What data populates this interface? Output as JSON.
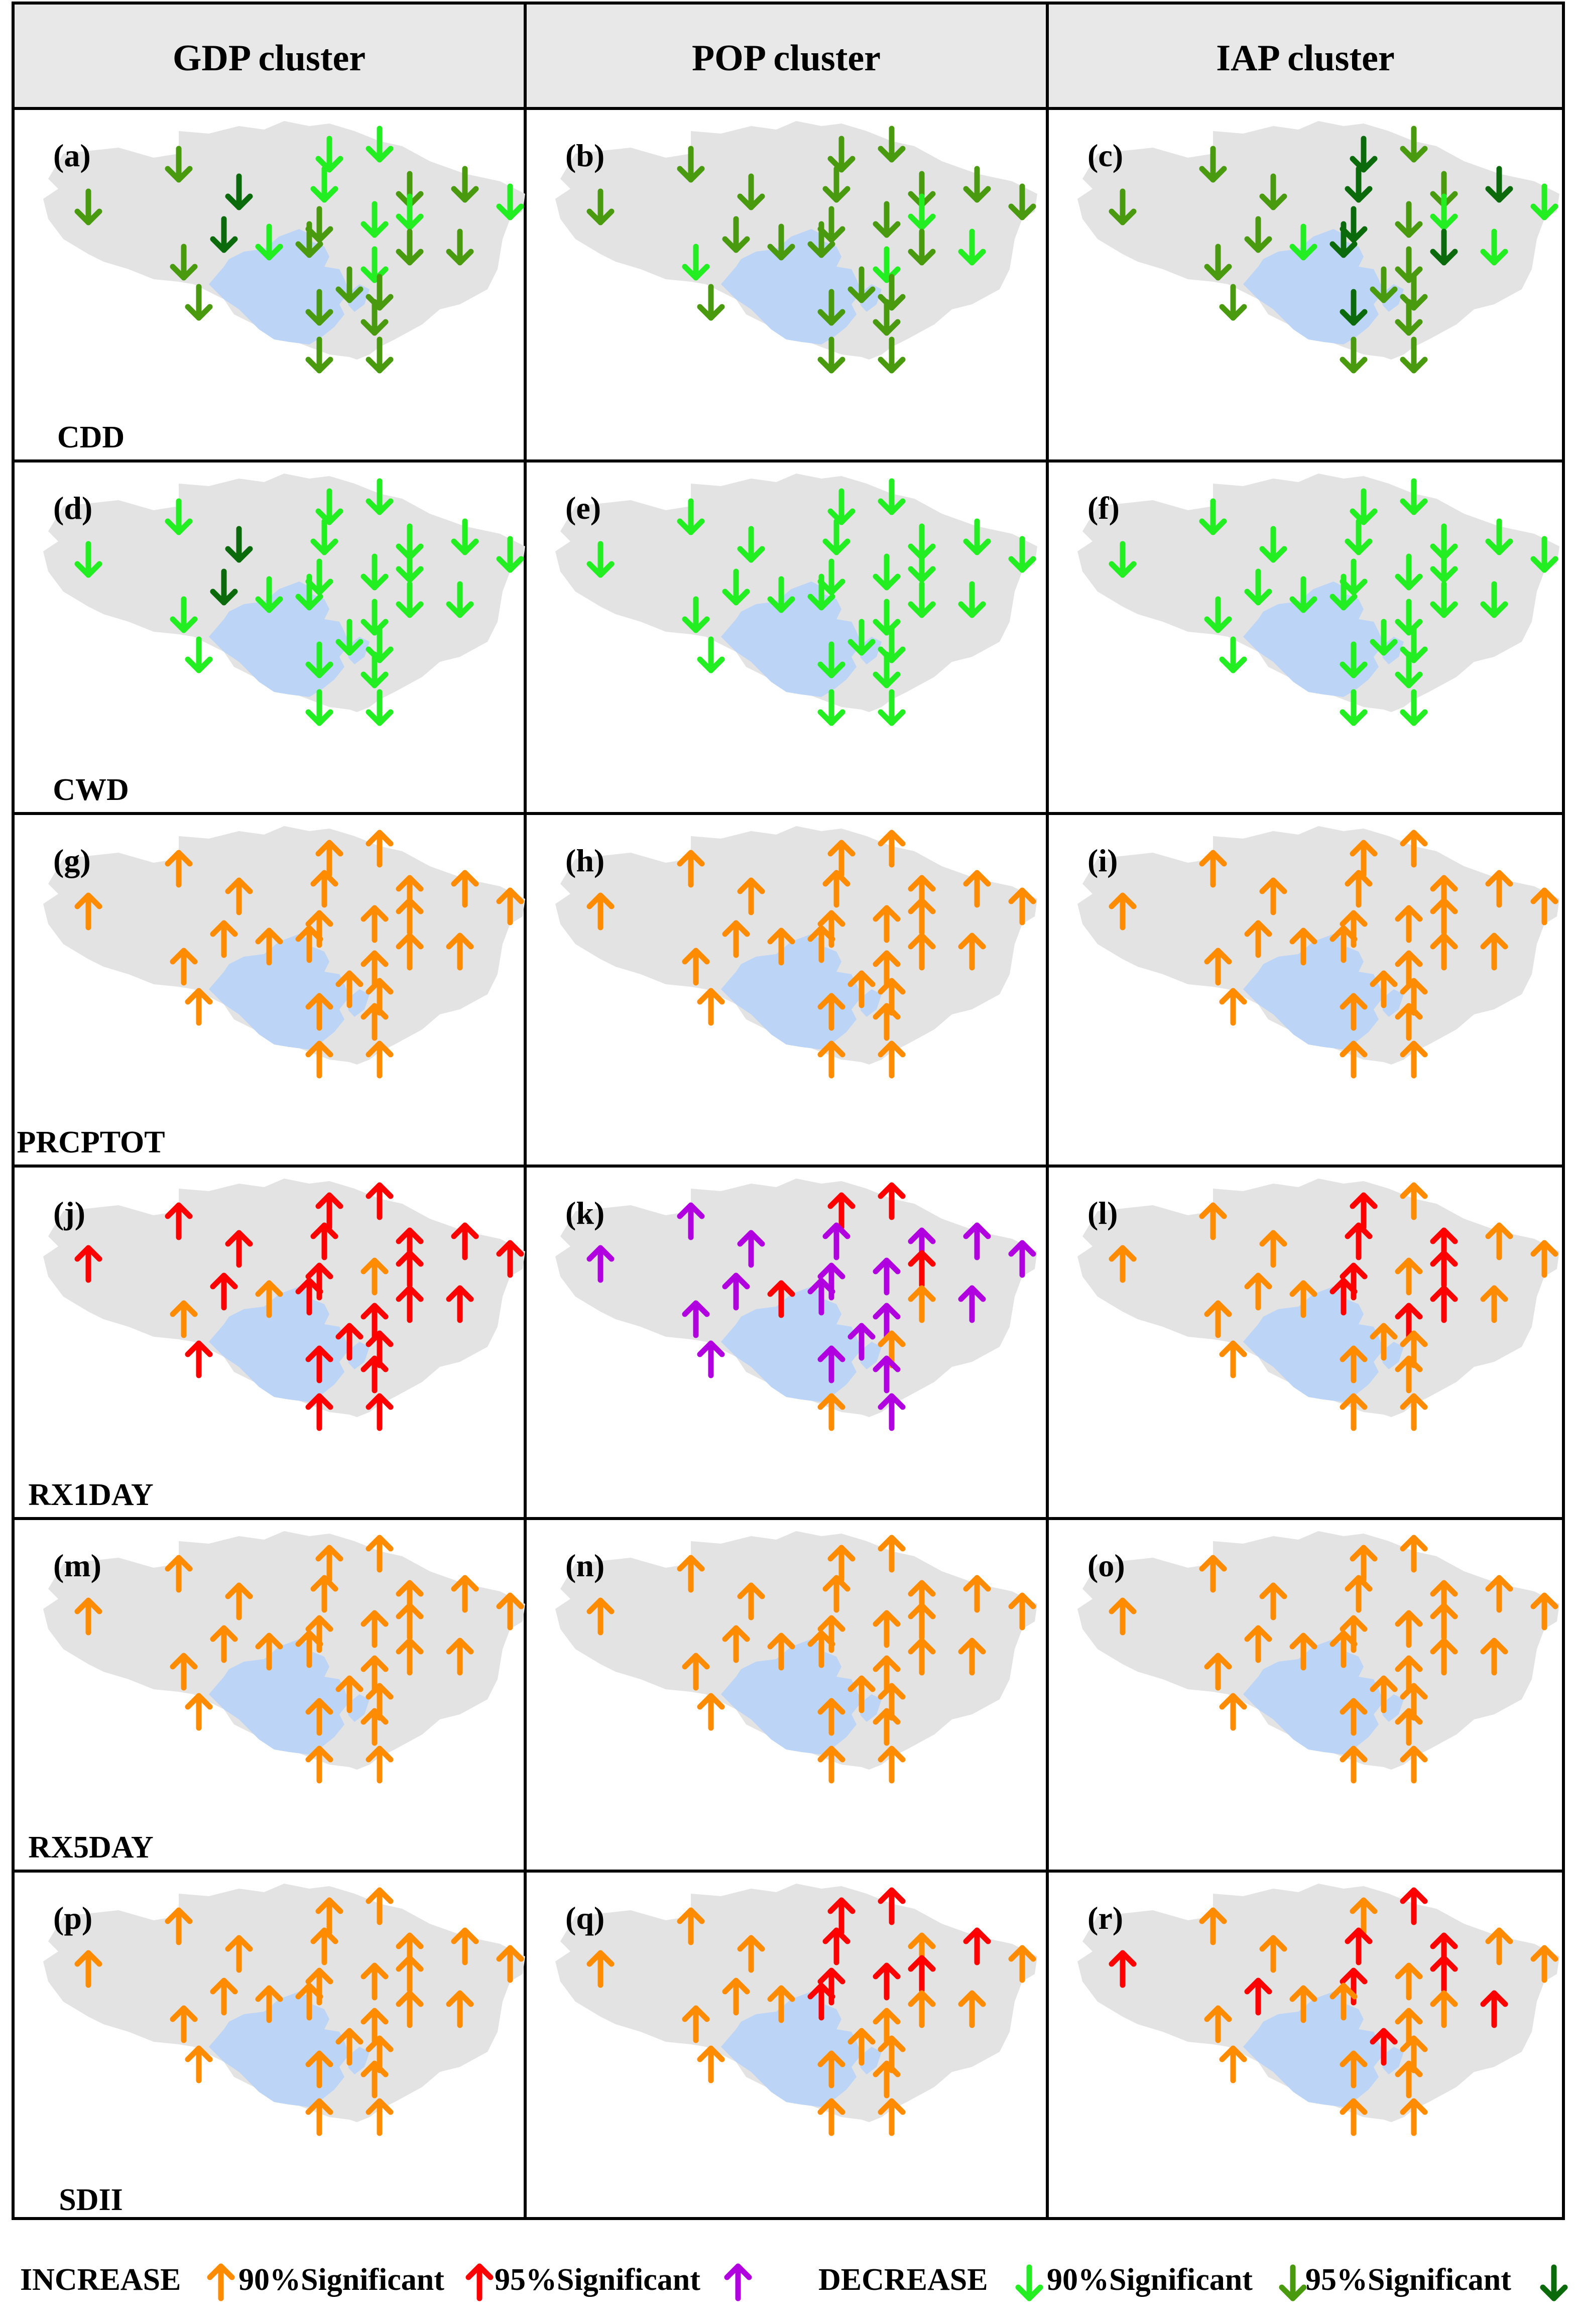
{
  "headers": [
    "GDP cluster",
    "POP cluster",
    "IAP cluster"
  ],
  "rows": [
    {
      "index": "CDD",
      "panels": [
        "(a)",
        "(b)",
        "(c)"
      ],
      "kinds": [
        "dec-mix-a",
        "dec-mix-b",
        "dec-mix-c"
      ]
    },
    {
      "index": "CWD",
      "panels": [
        "(d)",
        "(e)",
        "(f)"
      ],
      "kinds": [
        "dec-d",
        "dec",
        "dec"
      ]
    },
    {
      "index": "PRCPTOT",
      "panels": [
        "(g)",
        "(h)",
        "(i)"
      ],
      "kinds": [
        "inc",
        "inc",
        "inc"
      ]
    },
    {
      "index": "RX1DAY",
      "panels": [
        "(j)",
        "(k)",
        "(l)"
      ],
      "kinds": [
        "inc-j",
        "inc-k",
        "inc-l"
      ]
    },
    {
      "index": "RX5DAY",
      "panels": [
        "(m)",
        "(n)",
        "(o)"
      ],
      "kinds": [
        "inc",
        "inc",
        "inc"
      ]
    },
    {
      "index": "SDII",
      "panels": [
        "(p)",
        "(q)",
        "(r)"
      ],
      "kinds": [
        "inc",
        "inc-q",
        "inc-r"
      ]
    }
  ],
  "legend": {
    "increase_label": "INCREASE",
    "inc_90_label": "90%Significant",
    "inc_95_label": "95%Significant",
    "decrease_label": "DECREASE",
    "dec_90_label": "90%Significant",
    "dec_95_label": "95%Significant"
  },
  "colors": {
    "increase": "#ff8c00",
    "increase_90": "#ff0000",
    "increase_95": "#b000e0",
    "decrease": "#22ee22",
    "decrease_90": "#4a9a10",
    "decrease_95": "#0b6a0b",
    "basin": "#e3e3e3",
    "lake": "#bcd4f5",
    "border": "#000000",
    "header_bg": "#e8e8e8"
  }
}
